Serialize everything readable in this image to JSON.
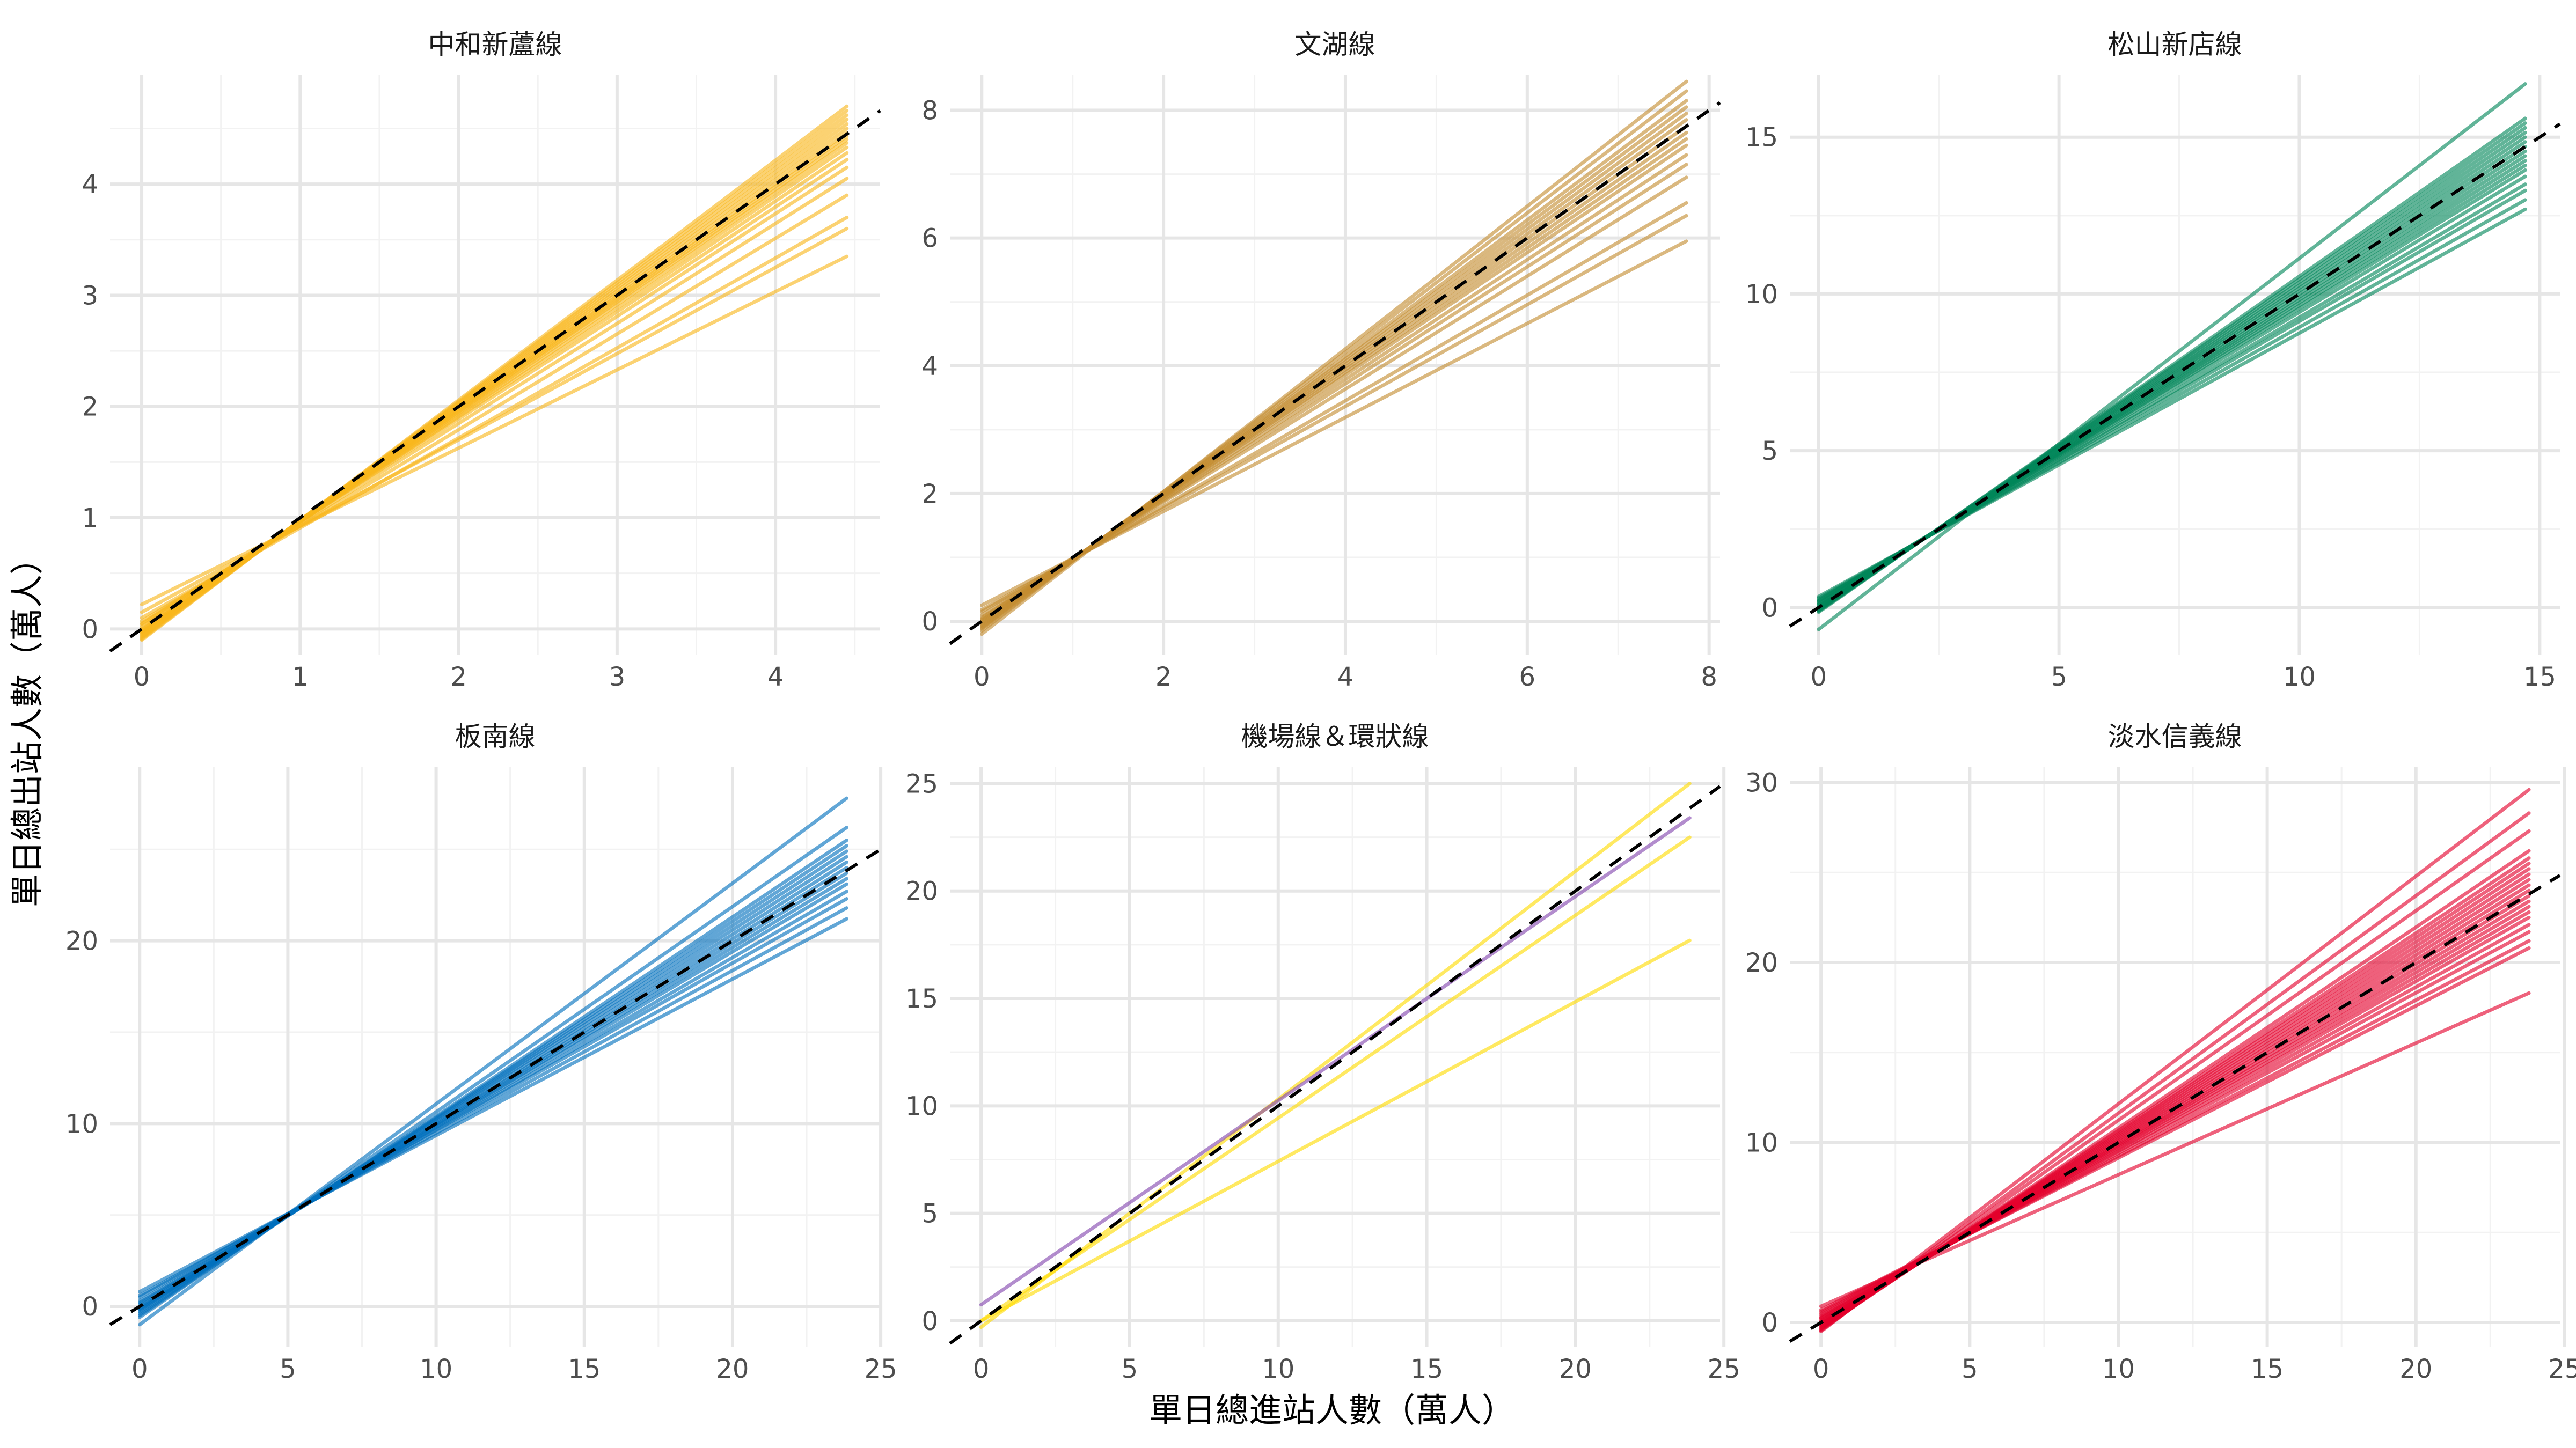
{
  "chart_data": {
    "type": "line",
    "facet_layout": "3 columns x 2 rows",
    "xlabel": "單日總進站人數（萬人）",
    "ylabel": "單日總出站人數（萬人）",
    "grid": true,
    "reference_line": "y = x (black dashed)",
    "panels": [
      {
        "title": "中和新蘆線",
        "color": "#F8B61C",
        "xlim": [
          -0.2,
          4.66
        ],
        "ylim": [
          -0.23,
          4.98
        ],
        "xticks": [
          0,
          1,
          2,
          3,
          4
        ],
        "yticks": [
          0,
          1,
          2,
          3,
          4
        ],
        "x_range": [
          0,
          4.45
        ],
        "line_segments": [
          [
            0.22,
            3.35
          ],
          [
            0.15,
            3.6
          ],
          [
            0.1,
            3.7
          ],
          [
            0.07,
            3.9
          ],
          [
            0.05,
            4.05
          ],
          [
            0.04,
            4.15
          ],
          [
            0.02,
            4.22
          ],
          [
            0.0,
            4.28
          ],
          [
            -0.01,
            4.33
          ],
          [
            -0.02,
            4.37
          ],
          [
            -0.03,
            4.4
          ],
          [
            -0.03,
            4.43
          ],
          [
            -0.04,
            4.46
          ],
          [
            -0.05,
            4.5
          ],
          [
            -0.06,
            4.54
          ],
          [
            -0.07,
            4.58
          ],
          [
            -0.08,
            4.62
          ],
          [
            -0.09,
            4.66
          ],
          [
            -0.1,
            4.7
          ]
        ]
      },
      {
        "title": "文湖線",
        "color": "#C48C31",
        "xlim": [
          -0.35,
          8.12
        ],
        "ylim": [
          -0.52,
          8.55
        ],
        "xticks": [
          0,
          2,
          4,
          6,
          8
        ],
        "yticks": [
          0,
          2,
          4,
          6,
          8
        ],
        "x_range": [
          0,
          7.75
        ],
        "line_segments": [
          [
            0.25,
            5.95
          ],
          [
            0.18,
            6.35
          ],
          [
            0.15,
            6.55
          ],
          [
            0.1,
            6.95
          ],
          [
            0.06,
            7.15
          ],
          [
            0.04,
            7.3
          ],
          [
            0.02,
            7.45
          ],
          [
            0.0,
            7.55
          ],
          [
            -0.02,
            7.65
          ],
          [
            -0.04,
            7.75
          ],
          [
            -0.06,
            7.85
          ],
          [
            -0.08,
            7.95
          ],
          [
            -0.1,
            8.05
          ],
          [
            -0.12,
            8.15
          ],
          [
            -0.15,
            8.3
          ],
          [
            -0.2,
            8.45
          ]
        ]
      },
      {
        "title": "松山新店線",
        "color": "#008659",
        "xlim": [
          -0.6,
          15.42
        ],
        "ylim": [
          -1.5,
          16.98
        ],
        "xticks": [
          0,
          5,
          10,
          15
        ],
        "yticks": [
          0,
          5,
          10,
          15
        ],
        "x_range": [
          0,
          14.7
        ],
        "line_segments": [
          [
            0.35,
            12.7
          ],
          [
            0.3,
            13.0
          ],
          [
            0.25,
            13.3
          ],
          [
            0.22,
            13.5
          ],
          [
            0.2,
            13.75
          ],
          [
            0.15,
            13.95
          ],
          [
            0.12,
            14.1
          ],
          [
            0.1,
            14.25
          ],
          [
            0.05,
            14.4
          ],
          [
            0.02,
            14.55
          ],
          [
            0.0,
            14.7
          ],
          [
            -0.02,
            14.85
          ],
          [
            -0.05,
            15.0
          ],
          [
            -0.08,
            15.15
          ],
          [
            -0.1,
            15.3
          ],
          [
            -0.12,
            15.45
          ],
          [
            -0.15,
            15.6
          ],
          [
            -0.7,
            16.7
          ]
        ]
      },
      {
        "title": "板南線",
        "color": "#0070BD",
        "xlim": [
          -1.0,
          24.98
        ],
        "ylim": [
          -2.2,
          29.5
        ],
        "xticks": [
          0,
          5,
          10,
          15,
          20,
          25
        ],
        "yticks": [
          0,
          10,
          20
        ],
        "x_range": [
          0,
          23.85
        ],
        "line_segments": [
          [
            0.8,
            21.2
          ],
          [
            0.6,
            21.8
          ],
          [
            0.5,
            22.3
          ],
          [
            0.3,
            22.7
          ],
          [
            0.2,
            23.1
          ],
          [
            0.1,
            23.4
          ],
          [
            0.0,
            23.7
          ],
          [
            -0.1,
            24.0
          ],
          [
            -0.15,
            24.3
          ],
          [
            -0.2,
            24.6
          ],
          [
            -0.3,
            24.9
          ],
          [
            -0.4,
            25.2
          ],
          [
            -0.5,
            25.5
          ],
          [
            -0.6,
            26.2
          ],
          [
            -1.0,
            27.8
          ]
        ]
      },
      {
        "title": "機場線＆環狀線",
        "color": "#FFDB00",
        "xlim": [
          -1.05,
          24.87
        ],
        "ylim": [
          -1.2,
          25.76
        ],
        "xticks": [
          0,
          5,
          10,
          15,
          20,
          25
        ],
        "yticks": [
          0,
          5,
          10,
          15,
          20,
          25
        ],
        "x_range": [
          0,
          23.85
        ],
        "series": [
          {
            "color": "#FFDB00",
            "line_segments": [
              [
                0.0,
                17.7
              ],
              [
                0.0,
                22.5
              ],
              [
                -0.3,
                25.0
              ]
            ]
          },
          {
            "color": "#8246AF",
            "line_segments": [
              [
                0.75,
                23.4
              ]
            ]
          }
        ]
      },
      {
        "title": "淡水信義線",
        "color": "#E3002C",
        "xlim": [
          -1.05,
          24.84
        ],
        "ylim": [
          -1.34,
          30.85
        ],
        "xticks": [
          0,
          5,
          10,
          15,
          20,
          25
        ],
        "yticks": [
          0,
          10,
          20,
          30
        ],
        "x_range": [
          0,
          23.8
        ],
        "line_segments": [
          [
            0.9,
            18.3
          ],
          [
            0.7,
            20.8
          ],
          [
            0.6,
            21.2
          ],
          [
            0.5,
            21.7
          ],
          [
            0.4,
            22.1
          ],
          [
            0.3,
            22.5
          ],
          [
            0.25,
            22.8
          ],
          [
            0.2,
            23.1
          ],
          [
            0.1,
            23.4
          ],
          [
            0.05,
            23.7
          ],
          [
            0.0,
            24.0
          ],
          [
            -0.05,
            24.3
          ],
          [
            -0.1,
            24.6
          ],
          [
            -0.15,
            24.9
          ],
          [
            -0.2,
            25.2
          ],
          [
            -0.25,
            25.5
          ],
          [
            -0.3,
            25.8
          ],
          [
            -0.35,
            26.2
          ],
          [
            -0.4,
            27.3
          ],
          [
            -0.45,
            28.3
          ],
          [
            -0.5,
            29.6
          ]
        ]
      }
    ]
  }
}
